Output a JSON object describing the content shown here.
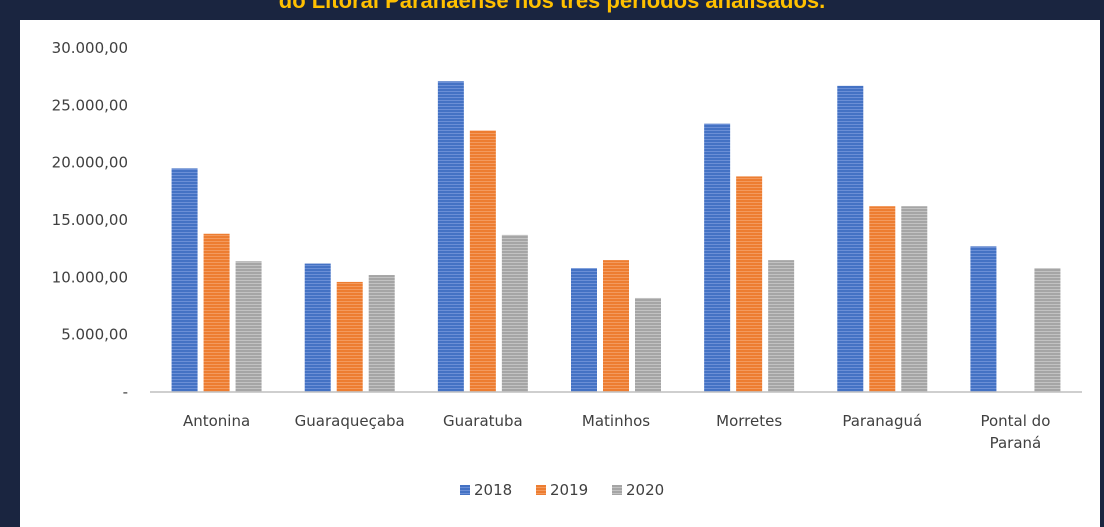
{
  "header": {
    "caption": "do Litoral Paranaense nos três períodos analisados."
  },
  "chart_data": {
    "type": "bar",
    "categories": [
      "Antonina",
      "Guaraqueçaba",
      "Guaratuba",
      "Matinhos",
      "Morretes",
      "Paranaguá",
      "Pontal do Paraná"
    ],
    "series": [
      {
        "name": "2018",
        "color": "#4472c4",
        "values": [
          19500,
          11200,
          27100,
          10800,
          23400,
          26700,
          12700
        ]
      },
      {
        "name": "2019",
        "color": "#ed7d31",
        "values": [
          13800,
          9600,
          22800,
          11500,
          18800,
          16200,
          null
        ]
      },
      {
        "name": "2020",
        "color": "#a5a5a5",
        "values": [
          11400,
          10200,
          13700,
          8200,
          11500,
          16200,
          10800
        ]
      }
    ],
    "yticks": [
      "-",
      "5.000,00",
      "10.000,00",
      "15.000,00",
      "20.000,00",
      "25.000,00",
      "30.000,00"
    ],
    "ylim": [
      0,
      30000
    ],
    "legend_position": "bottom",
    "grid": false
  }
}
